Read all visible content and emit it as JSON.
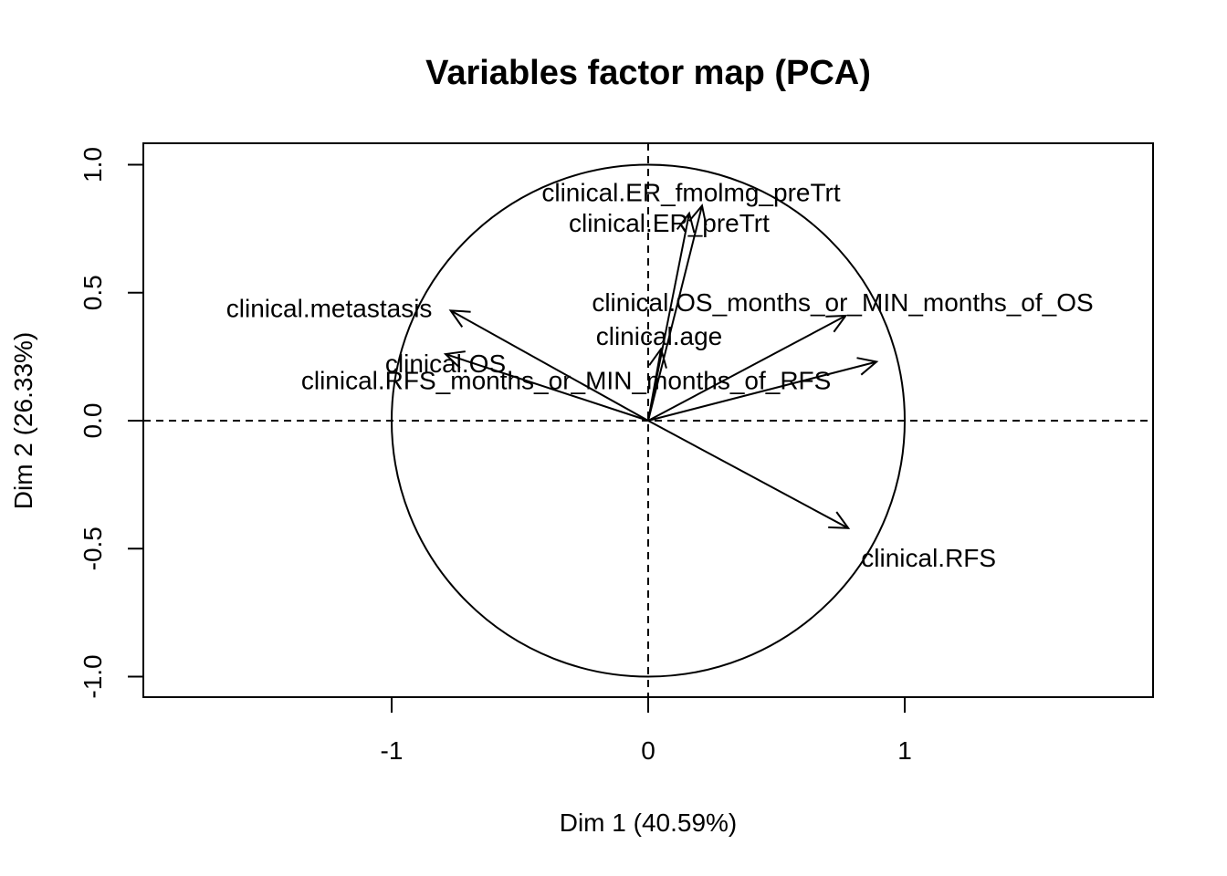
{
  "chart_data": {
    "type": "scatter",
    "title": "Variables factor map (PCA)",
    "xlabel": "Dim 1 (40.59%)",
    "ylabel": "Dim 2 (26.33%)",
    "xlim": [
      -1.0,
      1.0
    ],
    "ylim": [
      -1.0,
      1.0
    ],
    "x_ticks": [
      -1,
      0,
      1
    ],
    "x_tick_labels": [
      "-1",
      "0",
      "1"
    ],
    "y_ticks": [
      -1.0,
      -0.5,
      0.0,
      0.5,
      1.0
    ],
    "y_tick_labels": [
      "-1.0",
      "-0.5",
      "0.0",
      "0.5",
      "1.0"
    ],
    "unit_circle": true,
    "reference_lines": [
      0,
      0
    ],
    "variables": [
      {
        "name": "clinical.ER_fmolmg_preTrt",
        "x": 0.21,
        "y": 0.84
      },
      {
        "name": "clinical.ER_preTrt",
        "x": 0.16,
        "y": 0.81
      },
      {
        "name": "clinical.metastasis",
        "x": -0.77,
        "y": 0.43
      },
      {
        "name": "clinical.OS",
        "x": -0.79,
        "y": 0.26
      },
      {
        "name": "clinical.OS_months_or_MIN_months_of_OS",
        "x": 0.77,
        "y": 0.41
      },
      {
        "name": "clinical.age",
        "x": 0.05,
        "y": 0.28
      },
      {
        "name": "clinical.RFS_months_or_MIN_months_of_RFS",
        "x": 0.89,
        "y": 0.23
      },
      {
        "name": "clinical.RFS",
        "x": 0.78,
        "y": -0.42
      }
    ]
  }
}
